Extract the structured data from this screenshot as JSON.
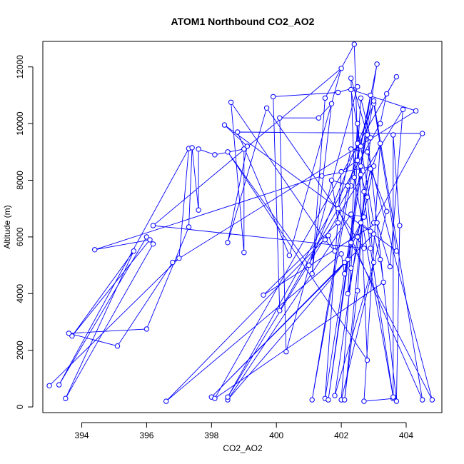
{
  "chart_data": {
    "type": "line",
    "title": "ATOM1 Northbound CO2_AO2",
    "xlabel": "CO2_AO2",
    "ylabel": "Altitude (m)",
    "xlim": [
      392.8,
      405.1
    ],
    "ylim": [
      -200,
      12900
    ],
    "xticks": [
      394,
      396,
      398,
      400,
      402,
      404
    ],
    "yticks": [
      0,
      2000,
      4000,
      6000,
      8000,
      10000,
      12000
    ],
    "grid": false,
    "legend": "none",
    "series_color": "#0000ff",
    "marker": "open-circle",
    "points": [
      [
        393.0,
        750
      ],
      [
        397.0,
        5250
      ],
      [
        397.3,
        9120
      ],
      [
        393.3,
        780
      ],
      [
        396.0,
        6000
      ],
      [
        396.2,
        5750
      ],
      [
        393.5,
        300
      ],
      [
        395.6,
        5500
      ],
      [
        393.7,
        2500
      ],
      [
        396.1,
        5900
      ],
      [
        394.4,
        5550
      ],
      [
        401.4,
        8150
      ],
      [
        403.0,
        8500
      ],
      [
        402.2,
        4000
      ],
      [
        402.5,
        10000
      ],
      [
        402.8,
        1650
      ],
      [
        398.5,
        9000
      ],
      [
        401.0,
        5000
      ],
      [
        403.0,
        10700
      ],
      [
        403.7,
        5500
      ],
      [
        398.4,
        9950
      ],
      [
        399.1,
        9200
      ],
      [
        398.5,
        5800
      ],
      [
        399.7,
        10550
      ],
      [
        402.7,
        5600
      ],
      [
        396.2,
        6400
      ],
      [
        402.0,
        11950
      ],
      [
        400.4,
        5350
      ],
      [
        398.8,
        9700
      ],
      [
        404.5,
        9650
      ],
      [
        403.0,
        6500
      ],
      [
        402.3,
        11200
      ],
      [
        404.3,
        10450
      ],
      [
        396.8,
        5100
      ],
      [
        395.1,
        2150
      ],
      [
        393.6,
        2600
      ],
      [
        396.0,
        2750
      ],
      [
        397.3,
        6350
      ],
      [
        397.4,
        9150
      ],
      [
        397.6,
        6950
      ],
      [
        397.6,
        9100
      ],
      [
        398.1,
        8900
      ],
      [
        399.0,
        9100
      ],
      [
        399.0,
        5450
      ],
      [
        398.6,
        10750
      ],
      [
        401.5,
        5900
      ],
      [
        401.8,
        5500
      ],
      [
        401.6,
        6050
      ],
      [
        396.6,
        200
      ],
      [
        402.0,
        5400
      ],
      [
        402.1,
        4700
      ],
      [
        402.2,
        5200
      ],
      [
        398.5,
        250
      ],
      [
        402.3,
        6800
      ],
      [
        402.7,
        6700
      ],
      [
        402.1,
        5100
      ],
      [
        398.0,
        350
      ],
      [
        403.0,
        6100
      ],
      [
        403.2,
        5200
      ],
      [
        403.3,
        4400
      ],
      [
        398.1,
        300
      ],
      [
        403.7,
        11650
      ],
      [
        403.4,
        11050
      ],
      [
        403.2,
        10000
      ],
      [
        398.5,
        350
      ],
      [
        403.9,
        10500
      ],
      [
        403.5,
        4950
      ],
      [
        403.1,
        6500
      ],
      [
        399.6,
        3950
      ],
      [
        401.9,
        6500
      ],
      [
        401.7,
        8000
      ],
      [
        402.3,
        7800
      ],
      [
        400.1,
        3400
      ],
      [
        399.9,
        10950
      ],
      [
        401.9,
        11100
      ],
      [
        402.5,
        11300
      ],
      [
        400.3,
        1950
      ],
      [
        400.1,
        10200
      ],
      [
        401.3,
        10200
      ],
      [
        401.7,
        10700
      ],
      [
        401.1,
        4700
      ],
      [
        401.5,
        10900
      ],
      [
        402.4,
        12800
      ],
      [
        402.5,
        9300
      ],
      [
        401.1,
        250
      ],
      [
        402.2,
        7800
      ],
      [
        402.6,
        9200
      ],
      [
        403.1,
        12100
      ],
      [
        401.5,
        300
      ],
      [
        402.0,
        8300
      ],
      [
        402.5,
        8700
      ],
      [
        402.9,
        11000
      ],
      [
        401.6,
        250
      ],
      [
        402.6,
        8200
      ],
      [
        402.8,
        7400
      ],
      [
        403.0,
        5100
      ],
      [
        401.8,
        400
      ],
      [
        402.5,
        6000
      ],
      [
        402.9,
        8400
      ],
      [
        403.4,
        6900
      ],
      [
        402.0,
        250
      ],
      [
        402.3,
        4900
      ],
      [
        402.6,
        10900
      ],
      [
        402.9,
        9500
      ],
      [
        402.1,
        250
      ],
      [
        402.5,
        4100
      ],
      [
        402.7,
        7600
      ],
      [
        403.2,
        9300
      ],
      [
        402.7,
        200
      ],
      [
        403.6,
        300
      ],
      [
        403.6,
        9600
      ],
      [
        403.8,
        6400
      ],
      [
        403.7,
        200
      ],
      [
        402.8,
        9600
      ],
      [
        402.3,
        11600
      ],
      [
        402.4,
        8100
      ],
      [
        403.6,
        350
      ],
      [
        402.9,
        5600
      ],
      [
        402.6,
        8500
      ],
      [
        403.0,
        10800
      ],
      [
        404.5,
        250
      ],
      [
        401.9,
        7000
      ],
      [
        402.3,
        9100
      ],
      [
        402.8,
        9000
      ],
      [
        404.8,
        250
      ],
      [
        402.3,
        5800
      ],
      [
        402.6,
        6500
      ],
      [
        402.9,
        6200
      ]
    ]
  }
}
